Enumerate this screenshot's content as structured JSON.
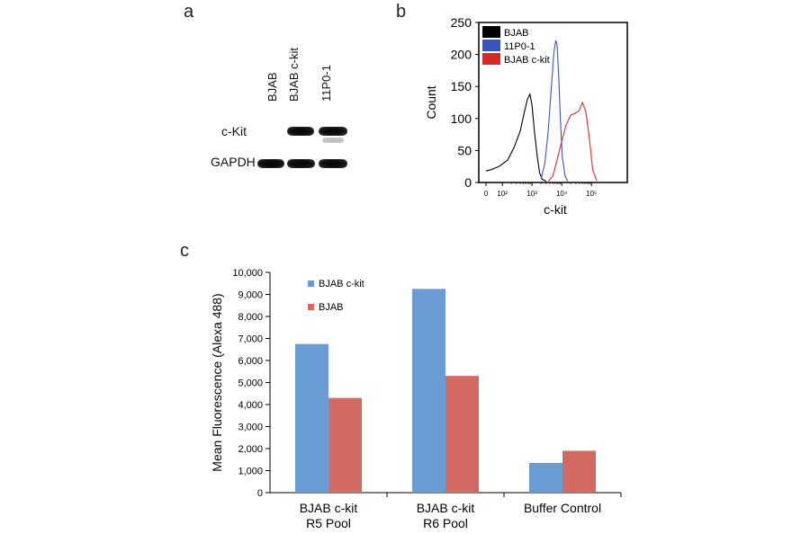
{
  "panels": {
    "a": "a",
    "b": "b",
    "c": "c"
  },
  "western_blot": {
    "lanes": [
      "BJAB",
      "BJAB c-kit",
      "11P0-1"
    ],
    "rows": [
      "c-Kit",
      "GAPDH"
    ]
  },
  "chart_data": [
    {
      "panel": "b",
      "type": "line",
      "xlabel": "c-kit",
      "ylabel": "Count",
      "ylim": [
        0,
        250
      ],
      "yticks": [
        0,
        50,
        100,
        150,
        200,
        250
      ],
      "xscale": "log",
      "xtick_labels": [
        "0",
        "10²",
        "10³",
        "10⁴",
        "10⁵"
      ],
      "xticks": [
        0,
        100,
        1000,
        10000,
        100000
      ],
      "legend_position": "top-left",
      "series": [
        {
          "name": "BJAB",
          "color": "#000000",
          "x": [
            0,
            30,
            80,
            150,
            250,
            400,
            550,
            700,
            850,
            1000,
            1200,
            1500,
            1800,
            2200,
            3000
          ],
          "y": [
            18,
            20,
            25,
            35,
            55,
            80,
            110,
            130,
            138,
            120,
            80,
            40,
            15,
            5,
            2
          ]
        },
        {
          "name": "11P0-1",
          "color": "#3a55b8",
          "x": [
            2000,
            2700,
            3500,
            4500,
            5500,
            6300,
            7000,
            8000,
            9000,
            10500,
            13000,
            16000
          ],
          "y": [
            5,
            30,
            80,
            150,
            205,
            222,
            215,
            160,
            100,
            40,
            10,
            2
          ]
        },
        {
          "name": "BJAB c-kit",
          "color": "#d42a2a",
          "x": [
            3500,
            5000,
            7000,
            10000,
            14000,
            20000,
            28000,
            38000,
            50000,
            65000,
            85000,
            110000,
            150000
          ],
          "y": [
            2,
            10,
            35,
            65,
            90,
            105,
            108,
            112,
            125,
            110,
            70,
            20,
            3
          ]
        }
      ]
    },
    {
      "panel": "c",
      "type": "bar",
      "ylabel": "Mean Fluorescence (Alexa 488)",
      "ylim": [
        0,
        10000
      ],
      "yticks": [
        0,
        1000,
        2000,
        3000,
        4000,
        5000,
        6000,
        7000,
        8000,
        9000,
        10000
      ],
      "ytick_labels": [
        "0",
        "1,000",
        "2,000",
        "3,000",
        "4,000",
        "5,000",
        "6,000",
        "7,000",
        "8,000",
        "9,000",
        "10,000"
      ],
      "categories": [
        [
          "BJAB c-kit",
          "R5 Pool"
        ],
        [
          "BJAB c-kit",
          "R6 Pool"
        ],
        [
          "Buffer Control"
        ]
      ],
      "legend_position": "top-left",
      "series": [
        {
          "name": "BJAB c-kit",
          "color": "#6a9bd3",
          "values": [
            6750,
            9250,
            1350
          ]
        },
        {
          "name": "BJAB",
          "color": "#d36a62",
          "values": [
            4300,
            5300,
            1900
          ]
        }
      ]
    }
  ]
}
